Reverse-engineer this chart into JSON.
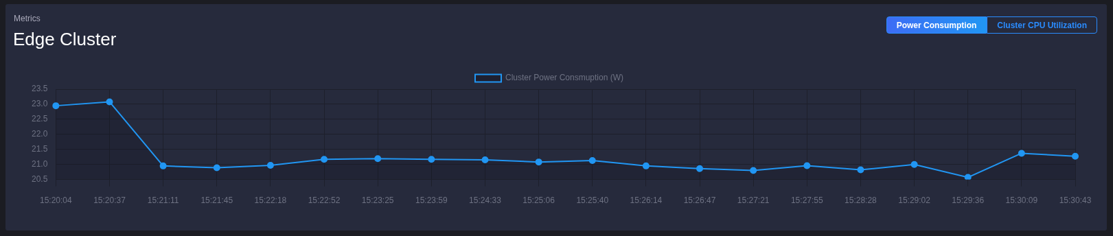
{
  "chart_data": {
    "type": "area",
    "title": "Edge Cluster",
    "subtitle": "Metrics",
    "annotations": [
      "Power Consumption",
      "Cluster CPU Utilization"
    ],
    "categories": [
      "15:20:04",
      "15:20:37",
      "15:21:11",
      "15:21:45",
      "15:22:18",
      "15:22:52",
      "15:23:25",
      "15:23:59",
      "15:24:33",
      "15:25:06",
      "15:25:40",
      "15:26:14",
      "15:26:47",
      "15:27:21",
      "15:27:55",
      "15:28:28",
      "15:29:02",
      "15:29:36",
      "15:30:09",
      "15:30:43"
    ],
    "series": [
      {
        "name": "Cluster Power Consmuption (W)",
        "color": "#2196f3",
        "values": [
          22.95,
          23.08,
          20.95,
          20.89,
          20.97,
          21.17,
          21.19,
          21.17,
          21.15,
          21.08,
          21.13,
          20.95,
          20.86,
          20.8,
          20.96,
          20.82,
          21.0,
          20.57,
          21.37,
          21.27
        ]
      }
    ],
    "ylim": [
      20.5,
      23.5
    ],
    "yticks": [
      20.5,
      {
        "value": 21,
        "label": "21.0"
      },
      21.5,
      {
        "value": 22,
        "label": "22.0"
      },
      22.5,
      {
        "value": 23,
        "label": "23.0"
      },
      23.5
    ],
    "grid": true,
    "legend": "top",
    "marker": "circle",
    "line_style": "solid"
  }
}
